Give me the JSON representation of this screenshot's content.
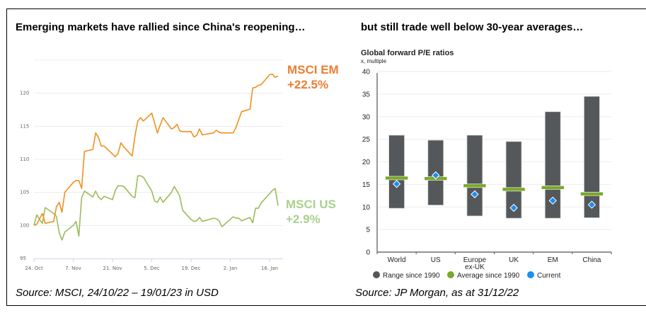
{
  "left_panel": {
    "title": "Emerging markets have rallied since China's reopening…",
    "source": "Source: MSCI, 24/10/22 – 19/01/23 in USD"
  },
  "right_panel": {
    "title": "but still trade well below 30-year averages…",
    "source": "Source: JP Morgan, as at 31/12/22"
  },
  "colors": {
    "em": "#F0901E",
    "em_label": "#ED7D31",
    "us": "#9BBB59",
    "us_label": "#A9D18E",
    "range_bar": "#54585A",
    "average": "#7AA82B",
    "current": "#1A8FF0",
    "grid": "#ECECEC"
  },
  "chart_data": [
    {
      "type": "line",
      "title": "",
      "xlabel": "",
      "ylabel": "",
      "ylim": [
        95,
        125
      ],
      "yticks": [
        95,
        100,
        105,
        110,
        115,
        120
      ],
      "xtick_labels": [
        "24. Oct",
        "7. Nov",
        "21. Nov",
        "5. Dec",
        "19. Dec",
        "2. Jan",
        "16. Jan"
      ],
      "xtick_days": [
        0,
        14,
        28,
        42,
        56,
        70,
        84
      ],
      "x_range_days": [
        0,
        87
      ],
      "grid": true,
      "days": [
        0,
        1,
        2,
        3,
        4,
        7,
        8,
        9,
        10,
        11,
        14,
        15,
        16,
        17,
        18,
        21,
        22,
        23,
        24,
        25,
        28,
        29,
        30,
        31,
        32,
        35,
        36,
        37,
        38,
        39,
        42,
        43,
        44,
        45,
        46,
        49,
        50,
        51,
        52,
        53,
        56,
        57,
        58,
        59,
        60,
        64,
        65,
        66,
        67,
        71,
        72,
        73,
        74,
        77,
        78,
        79,
        80,
        81,
        84,
        85,
        86,
        87
      ],
      "series": [
        {
          "name": "MSCI EM",
          "label": "MSCI EM",
          "change": "+22.5%",
          "values": [
            100.0,
            100.2,
            101.0,
            101.8,
            100.3,
            100.6,
            102.8,
            103.5,
            102.0,
            105.0,
            106.5,
            106.8,
            106.8,
            105.6,
            111.2,
            111.5,
            114.0,
            113.3,
            112.0,
            112.0,
            110.8,
            110.4,
            110.9,
            112.5,
            111.9,
            110.5,
            113.5,
            115.8,
            116.3,
            115.8,
            117.0,
            115.5,
            114.0,
            115.2,
            116.3,
            114.6,
            114.8,
            115.3,
            114.3,
            114.2,
            114.2,
            113.4,
            113.6,
            114.6,
            113.7,
            114.0,
            114.4,
            114.1,
            114.0,
            114.0,
            114.8,
            116.0,
            117.2,
            117.6,
            120.8,
            120.9,
            121.2,
            121.3,
            122.8,
            122.9,
            122.4,
            122.6
          ]
        },
        {
          "name": "MSCI US",
          "label": "MSCI US",
          "change": "+2.9%",
          "values": [
            100.0,
            101.6,
            100.9,
            100.3,
            102.7,
            101.8,
            101.4,
            98.9,
            97.8,
            99.0,
            100.0,
            100.6,
            98.4,
            104.2,
            105.2,
            104.3,
            105.2,
            104.3,
            103.9,
            104.4,
            103.9,
            105.3,
            106.0,
            106.0,
            105.9,
            104.4,
            104.2,
            107.5,
            107.5,
            107.3,
            105.2,
            103.7,
            103.5,
            104.3,
            103.5,
            105.0,
            105.9,
            105.2,
            104.4,
            102.3,
            100.9,
            100.6,
            100.7,
            101.2,
            100.6,
            101.1,
            101.0,
            100.7,
            99.8,
            101.3,
            101.1,
            101.1,
            100.7,
            101.2,
            100.4,
            102.6,
            102.6,
            103.4,
            104.8,
            105.3,
            105.6,
            103.0
          ]
        }
      ]
    },
    {
      "type": "bar",
      "subtype": "range-bar with markers",
      "title": "Global forward P/E ratios",
      "subtitle": "x, multiple",
      "xlabel": "",
      "ylabel": "x, multiple",
      "ylim": [
        0,
        40
      ],
      "yticks": [
        0,
        5,
        10,
        15,
        20,
        25,
        30,
        35,
        40
      ],
      "grid": true,
      "categories": [
        "World",
        "US",
        "Europe ex-UK",
        "UK",
        "EM",
        "China"
      ],
      "category_lines": [
        [
          "World"
        ],
        [
          "US"
        ],
        [
          "Europe",
          "ex-UK"
        ],
        [
          "UK"
        ],
        [
          "EM"
        ],
        [
          "China"
        ]
      ],
      "series": [
        {
          "name": "Range since 1990 (low)",
          "values": [
            9.7,
            10.4,
            8.0,
            7.5,
            7.5,
            7.6
          ]
        },
        {
          "name": "Range since 1990 (high)",
          "values": [
            25.9,
            24.8,
            25.9,
            24.5,
            31.1,
            34.5
          ]
        },
        {
          "name": "Average since 1990",
          "values": [
            16.4,
            16.3,
            14.7,
            13.9,
            14.3,
            12.9
          ]
        },
        {
          "name": "Current",
          "values": [
            15.1,
            17.0,
            12.8,
            9.8,
            11.4,
            10.5
          ]
        }
      ],
      "legend": {
        "placement": "bottom",
        "entries": [
          "Range since 1990",
          "Average since 1990",
          "Current"
        ]
      }
    }
  ]
}
